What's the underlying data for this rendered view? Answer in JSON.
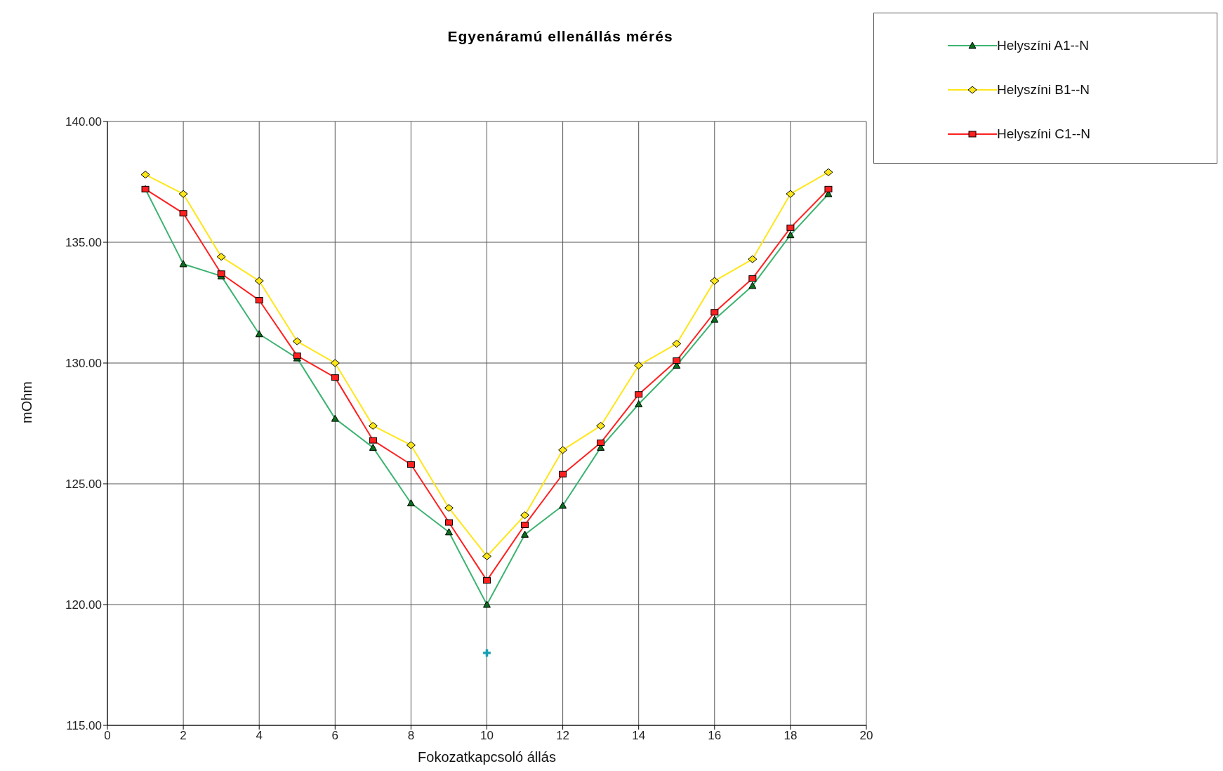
{
  "chart_data": {
    "type": "line",
    "title": "Egyenáramú ellenállás mérés",
    "xlabel": "Fokozatkapcsoló állás",
    "ylabel": "mOhm",
    "x": [
      1,
      2,
      3,
      4,
      5,
      6,
      7,
      8,
      9,
      10,
      11,
      12,
      13,
      14,
      15,
      16,
      17,
      18,
      19
    ],
    "series": [
      {
        "name": "Helyszíni A1--N",
        "color": "#3cb371",
        "marker": "triangle",
        "values": [
          137.2,
          134.1,
          133.6,
          131.2,
          130.2,
          127.7,
          126.5,
          124.2,
          123.0,
          120.0,
          122.9,
          124.1,
          126.5,
          128.3,
          129.9,
          131.8,
          133.2,
          135.3,
          137.0
        ]
      },
      {
        "name": "Helyszíni B1--N",
        "color": "#ffe619",
        "marker": "diamond",
        "values": [
          137.8,
          137.0,
          134.4,
          133.4,
          130.9,
          130.0,
          127.4,
          126.6,
          124.0,
          122.0,
          123.7,
          126.4,
          127.4,
          129.9,
          130.8,
          133.4,
          134.3,
          137.0,
          137.9
        ]
      },
      {
        "name": "Helyszíni C1--N",
        "color": "#ff2020",
        "marker": "square",
        "values": [
          137.2,
          136.2,
          133.7,
          132.6,
          130.3,
          129.4,
          126.8,
          125.8,
          123.4,
          121.0,
          123.3,
          125.4,
          126.7,
          128.7,
          130.1,
          132.1,
          133.5,
          135.6,
          137.2
        ]
      },
      {
        "type": "scatter",
        "color": "#1aa0b4",
        "marker": "cross",
        "x": [
          10
        ],
        "values": [
          118.0
        ]
      }
    ],
    "xlim": [
      0,
      20
    ],
    "xticks": [
      0,
      2,
      4,
      6,
      8,
      10,
      12,
      14,
      16,
      18,
      20
    ],
    "ylim": [
      115,
      140
    ],
    "yticks": [
      {
        "value": 115,
        "label": "115.00"
      },
      {
        "value": 120,
        "label": "120.00"
      },
      {
        "value": 125,
        "label": "125.00"
      },
      {
        "value": 130,
        "label": "130.00"
      },
      {
        "value": 135,
        "label": "135.00"
      },
      {
        "value": 140,
        "label": "140.00"
      }
    ],
    "grid": true,
    "legend": "top right",
    "line_style": "solid"
  }
}
